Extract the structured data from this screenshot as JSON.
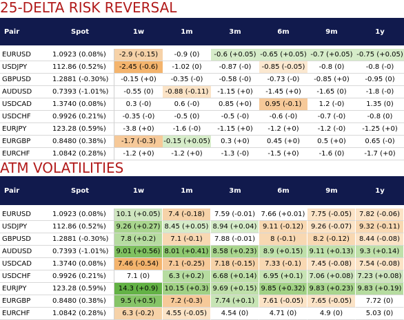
{
  "headers": [
    "Pair",
    "Spot",
    "1w",
    "1m",
    "3m",
    "6m",
    "9m",
    "1y"
  ],
  "risk_reversal": {
    "title": "25-DELTA RISK REVERSAL",
    "rows": [
      {
        "pair": "EURUSD",
        "spot": "1.0923 (0.08%)",
        "cells": [
          {
            "v": "-2.9 (-0.15)",
            "c": "#f6d2a8"
          },
          {
            "v": "-0.9 (0)",
            "c": "#ffffff"
          },
          {
            "v": "-0.6 (+0.05)",
            "c": "#d6ecc9"
          },
          {
            "v": "-0.65 (+0.05)",
            "c": "#d6ecc9"
          },
          {
            "v": "-0.7 (+0.05)",
            "c": "#d6ecc9"
          },
          {
            "v": "-0.75 (+0.05)",
            "c": "#d6ecc9"
          }
        ]
      },
      {
        "pair": "USDJPY",
        "spot": "112.86 (0.52%)",
        "cells": [
          {
            "v": "-2.45 (-0.6)",
            "c": "#f4b46d"
          },
          {
            "v": "-1.02 (0)",
            "c": "#ffffff"
          },
          {
            "v": "-0.87 (-0)",
            "c": "#ffffff"
          },
          {
            "v": "-0.85 (-0.05)",
            "c": "#fbe8d0"
          },
          {
            "v": "-0.8 (0)",
            "c": "#ffffff"
          },
          {
            "v": "-0.8 (-0)",
            "c": "#ffffff"
          }
        ]
      },
      {
        "pair": "GBPUSD",
        "spot": "1.2881 (-0.30%)",
        "cells": [
          {
            "v": "-0.15 (+0)",
            "c": "#ffffff"
          },
          {
            "v": "-0.35 (-0)",
            "c": "#ffffff"
          },
          {
            "v": "-0.58 (-0)",
            "c": "#ffffff"
          },
          {
            "v": "-0.73 (-0)",
            "c": "#ffffff"
          },
          {
            "v": "-0.85 (+0)",
            "c": "#ffffff"
          },
          {
            "v": "-0.95 (0)",
            "c": "#ffffff"
          }
        ]
      },
      {
        "pair": "AUDUSD",
        "spot": "0.7393 (-1.01%)",
        "cells": [
          {
            "v": "-0.55 (0)",
            "c": "#ffffff"
          },
          {
            "v": "-0.88 (-0.11)",
            "c": "#fbe3c6"
          },
          {
            "v": "-1.15 (+0)",
            "c": "#ffffff"
          },
          {
            "v": "-1.45 (+0)",
            "c": "#ffffff"
          },
          {
            "v": "-1.65 (0)",
            "c": "#ffffff"
          },
          {
            "v": "-1.8 (-0)",
            "c": "#ffffff"
          }
        ]
      },
      {
        "pair": "USDCAD",
        "spot": "1.3740 (0.08%)",
        "cells": [
          {
            "v": "0.3 (-0)",
            "c": "#ffffff"
          },
          {
            "v": "0.6 (-0)",
            "c": "#ffffff"
          },
          {
            "v": "0.85 (+0)",
            "c": "#ffffff"
          },
          {
            "v": "0.95 (-0.1)",
            "c": "#f6c999"
          },
          {
            "v": "1.2 (-0)",
            "c": "#ffffff"
          },
          {
            "v": "1.35 (0)",
            "c": "#ffffff"
          }
        ]
      },
      {
        "pair": "USDCHF",
        "spot": "0.9926 (0.21%)",
        "cells": [
          {
            "v": "-0.35 (-0)",
            "c": "#ffffff"
          },
          {
            "v": "-0.5 (0)",
            "c": "#ffffff"
          },
          {
            "v": "-0.5 (-0)",
            "c": "#ffffff"
          },
          {
            "v": "-0.6 (-0)",
            "c": "#ffffff"
          },
          {
            "v": "-0.7 (-0)",
            "c": "#ffffff"
          },
          {
            "v": "-0.8 (0)",
            "c": "#ffffff"
          }
        ]
      },
      {
        "pair": "EURJPY",
        "spot": "123.28 (0.59%)",
        "cells": [
          {
            "v": "-3.8 (+0)",
            "c": "#ffffff"
          },
          {
            "v": "-1.6 (-0)",
            "c": "#ffffff"
          },
          {
            "v": "-1.15 (+0)",
            "c": "#ffffff"
          },
          {
            "v": "-1.2 (+0)",
            "c": "#ffffff"
          },
          {
            "v": "-1.2 (-0)",
            "c": "#ffffff"
          },
          {
            "v": "-1.25 (+0)",
            "c": "#ffffff"
          }
        ]
      },
      {
        "pair": "EURGBP",
        "spot": "0.8480 (0.38%)",
        "cells": [
          {
            "v": "-1.7 (-0.3)",
            "c": "#f6c999"
          },
          {
            "v": "-0.15 (+0.05)",
            "c": "#d6ecc9"
          },
          {
            "v": "0.3 (+0)",
            "c": "#ffffff"
          },
          {
            "v": "0.45 (+0)",
            "c": "#ffffff"
          },
          {
            "v": "0.5 (+0)",
            "c": "#ffffff"
          },
          {
            "v": "0.65 (-0)",
            "c": "#ffffff"
          }
        ]
      },
      {
        "pair": "EURCHF",
        "spot": "1.0842 (0.28%)",
        "cells": [
          {
            "v": "-1.2 (+0)",
            "c": "#ffffff"
          },
          {
            "v": "-1.2 (+0)",
            "c": "#ffffff"
          },
          {
            "v": "-1.3 (-0)",
            "c": "#ffffff"
          },
          {
            "v": "-1.5 (+0)",
            "c": "#ffffff"
          },
          {
            "v": "-1.6 (0)",
            "c": "#ffffff"
          },
          {
            "v": "-1.7 (+0)",
            "c": "#ffffff"
          }
        ]
      }
    ]
  },
  "atm_vol": {
    "title": "ATM VOLATILITIES",
    "rows": [
      {
        "pair": "EURUSD",
        "spot": "1.0923 (0.08%)",
        "cells": [
          {
            "v": "10.1 (+0.05)",
            "c": "#cfe6c0"
          },
          {
            "v": "7.4 (-0.18)",
            "c": "#f6d2a8"
          },
          {
            "v": "7.59 (-0.01)",
            "c": "#ffffff"
          },
          {
            "v": "7.66 (+0.01)",
            "c": "#ffffff"
          },
          {
            "v": "7.75 (-0.05)",
            "c": "#fbe3c6"
          },
          {
            "v": "7.82 (-0.06)",
            "c": "#fbe3c6"
          }
        ]
      },
      {
        "pair": "USDJPY",
        "spot": "112.86 (0.52%)",
        "cells": [
          {
            "v": "9.26 (+0.27)",
            "c": "#a9d58e"
          },
          {
            "v": "8.45 (+0.05)",
            "c": "#d6ecc9"
          },
          {
            "v": "8.94 (+0.04)",
            "c": "#d6ecc9"
          },
          {
            "v": "9.11 (-0.12)",
            "c": "#f8d8b2"
          },
          {
            "v": "9.26 (-0.07)",
            "c": "#fbe3c6"
          },
          {
            "v": "9.32 (-0.11)",
            "c": "#f8d8b2"
          }
        ]
      },
      {
        "pair": "GBPUSD",
        "spot": "1.2881 (-0.30%)",
        "cells": [
          {
            "v": "7.8 (+0.2)",
            "c": "#b6dca0"
          },
          {
            "v": "7.1 (-0.1)",
            "c": "#f8d8b2"
          },
          {
            "v": "7.88 (-0.01)",
            "c": "#ffffff"
          },
          {
            "v": "8 (-0.1)",
            "c": "#f8d8b2"
          },
          {
            "v": "8.2 (-0.12)",
            "c": "#f8d8b2"
          },
          {
            "v": "8.44 (-0.08)",
            "c": "#fbe3c6"
          }
        ]
      },
      {
        "pair": "AUDUSD",
        "spot": "0.7393 (-1.01%)",
        "cells": [
          {
            "v": "9.01 (+0.56)",
            "c": "#7fc160"
          },
          {
            "v": "8.01 (+0.41)",
            "c": "#8ec86f"
          },
          {
            "v": "8.58 (+0.23)",
            "c": "#a9d58e"
          },
          {
            "v": "8.9 (+0.15)",
            "c": "#bfe0aa"
          },
          {
            "v": "9.11 (+0.13)",
            "c": "#bfe0aa"
          },
          {
            "v": "9.3 (+0.14)",
            "c": "#bfe0aa"
          }
        ]
      },
      {
        "pair": "USDCAD",
        "spot": "1.3740 (0.08%)",
        "cells": [
          {
            "v": "7.46 (-0.54)",
            "c": "#f4b46d"
          },
          {
            "v": "7.1 (-0.25)",
            "c": "#f6c999"
          },
          {
            "v": "7.18 (-0.15)",
            "c": "#f6d2a8"
          },
          {
            "v": "7.33 (-0.1)",
            "c": "#f8d8b2"
          },
          {
            "v": "7.45 (-0.08)",
            "c": "#fbe3c6"
          },
          {
            "v": "7.54 (-0.08)",
            "c": "#fbe3c6"
          }
        ]
      },
      {
        "pair": "USDCHF",
        "spot": "0.9926 (0.21%)",
        "cells": [
          {
            "v": "7.1 (0)",
            "c": "#ffffff"
          },
          {
            "v": "6.3 (+0.2)",
            "c": "#b6dca0"
          },
          {
            "v": "6.68 (+0.14)",
            "c": "#bfe0aa"
          },
          {
            "v": "6.95 (+0.1)",
            "c": "#c7e4b5"
          },
          {
            "v": "7.06 (+0.08)",
            "c": "#cfe6c0"
          },
          {
            "v": "7.23 (+0.08)",
            "c": "#cfe6c0"
          }
        ]
      },
      {
        "pair": "EURJPY",
        "spot": "123.28 (0.59%)",
        "cells": [
          {
            "v": "14.3 (+0.9)",
            "c": "#63b245"
          },
          {
            "v": "10.15 (+0.3)",
            "c": "#a1d185"
          },
          {
            "v": "9.69 (+0.15)",
            "c": "#bfe0aa"
          },
          {
            "v": "9.85 (+0.32)",
            "c": "#a1d185"
          },
          {
            "v": "9.83 (+0.23)",
            "c": "#a9d58e"
          },
          {
            "v": "9.83 (+0.19)",
            "c": "#b6dca0"
          }
        ]
      },
      {
        "pair": "EURGBP",
        "spot": "0.8480 (0.38%)",
        "cells": [
          {
            "v": "9.5 (+0.5)",
            "c": "#86c467"
          },
          {
            "v": "7.2 (-0.3)",
            "c": "#f6c999"
          },
          {
            "v": "7.74 (+0.1)",
            "c": "#c7e4b5"
          },
          {
            "v": "7.61 (-0.05)",
            "c": "#fbe3c6"
          },
          {
            "v": "7.65 (-0.05)",
            "c": "#fbe3c6"
          },
          {
            "v": "7.72 (0)",
            "c": "#ffffff"
          }
        ]
      },
      {
        "pair": "EURCHF",
        "spot": "1.0842 (0.28%)",
        "cells": [
          {
            "v": "6.3 (-0.2)",
            "c": "#f6d2a8"
          },
          {
            "v": "4.55 (-0.05)",
            "c": "#fbe3c6"
          },
          {
            "v": "4.54 (0)",
            "c": "#ffffff"
          },
          {
            "v": "4.71 (0)",
            "c": "#ffffff"
          },
          {
            "v": "4.9 (0)",
            "c": "#ffffff"
          },
          {
            "v": "5.03 (0)",
            "c": "#ffffff"
          }
        ]
      }
    ]
  }
}
